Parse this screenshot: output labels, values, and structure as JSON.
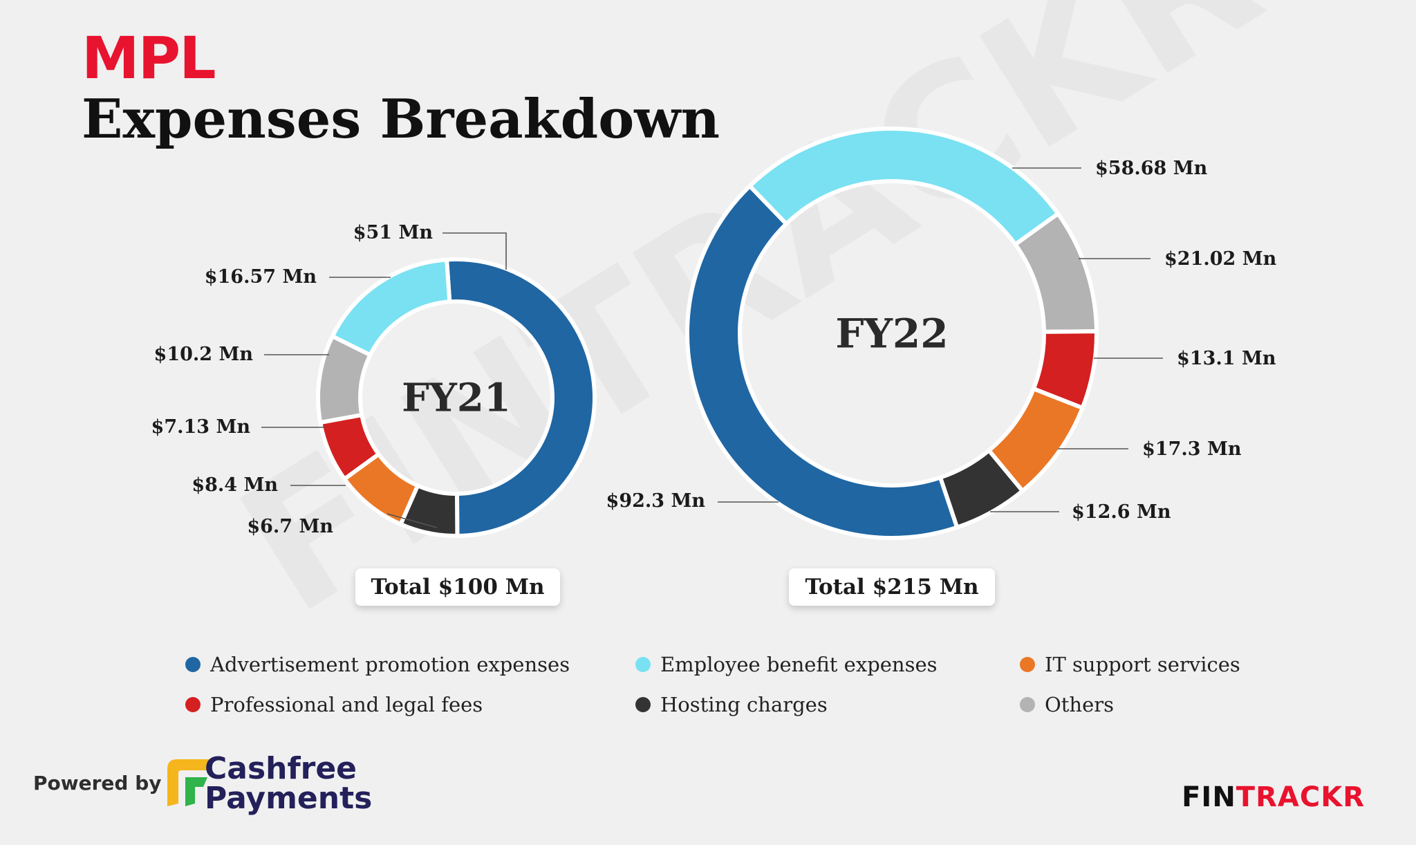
{
  "brand": {
    "logo_text": "MPL",
    "accent_color": "#e8132e"
  },
  "title": "Expenses Breakdown",
  "watermark_text": "FINTRACKR",
  "chart_data": [
    {
      "type": "pie",
      "center_label": "FY21",
      "total_label": "Total $100 Mn",
      "categories": [
        "Advertisement promotion expenses",
        "Hosting charges",
        "IT support services",
        "Professional and legal fees",
        "Others",
        "Employee benefit expenses"
      ],
      "values": [
        51,
        6.7,
        8.4,
        7.13,
        10.2,
        16.57
      ],
      "value_labels": [
        "$51 Mn",
        "$6.7 Mn",
        "$8.4 Mn",
        "$7.13 Mn",
        "$10.2 Mn",
        "$16.57 Mn"
      ]
    },
    {
      "type": "pie",
      "center_label": "FY22",
      "total_label": "Total $215 Mn",
      "categories": [
        "Employee benefit expenses",
        "Others",
        "Professional and legal fees",
        "IT support services",
        "Hosting charges",
        "Advertisement promotion expenses"
      ],
      "values": [
        58.68,
        21.02,
        13.1,
        17.3,
        12.6,
        92.3
      ],
      "value_labels": [
        "$58.68 Mn",
        "$21.02 Mn",
        "$13.1 Mn",
        "$17.3 Mn",
        "$12.6 Mn",
        "$92.3 Mn"
      ]
    }
  ],
  "series_colors": {
    "Advertisement promotion expenses": "#1f66a3",
    "Employee benefit expenses": "#79e1f2",
    "IT support services": "#ea7725",
    "Professional and legal fees": "#d42020",
    "Hosting charges": "#333333",
    "Others": "#b3b3b3"
  },
  "legend": [
    "Advertisement promotion expenses",
    "Employee benefit expenses",
    "IT support services",
    "Professional and legal fees",
    "Hosting charges",
    "Others"
  ],
  "footer": {
    "powered_by": "Powered by",
    "partner_line1": "Cashfree",
    "partner_line2": "Payments",
    "brand_part1": "FIN",
    "brand_part2": "TRACKR"
  }
}
